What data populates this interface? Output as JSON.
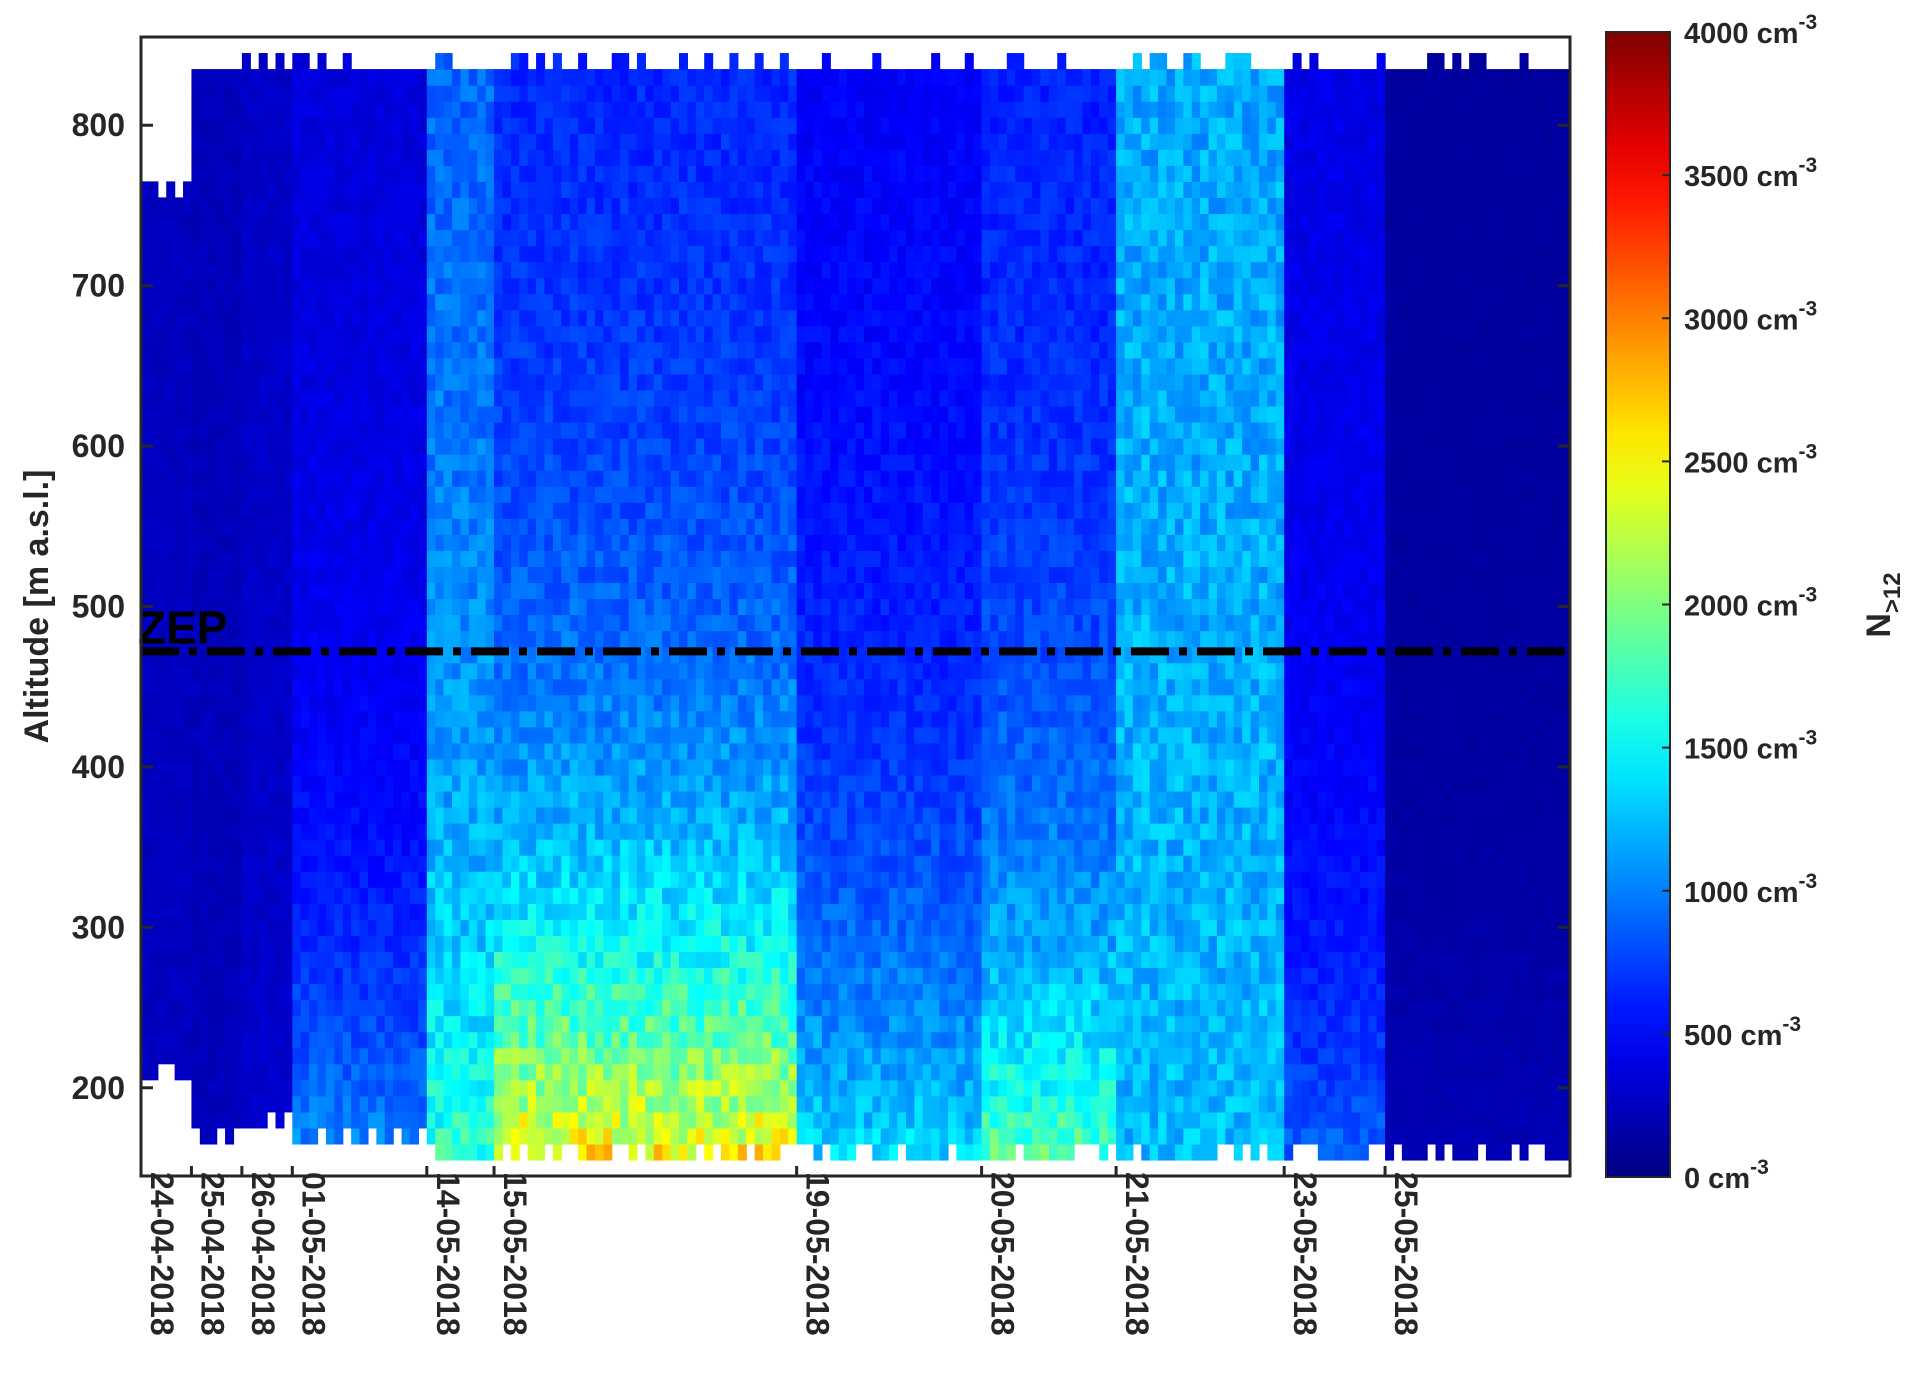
{
  "chart_data": {
    "type": "heatmap",
    "title": "",
    "xlabel": "",
    "ylabel": "Altitude [m a.s.l.]",
    "ylim": [
      145,
      855
    ],
    "y_ticks": [
      200,
      300,
      400,
      500,
      600,
      700,
      800
    ],
    "x_segments": [
      {
        "date": "24-04-2018",
        "columns": 6
      },
      {
        "date": "25-04-2018",
        "columns": 6
      },
      {
        "date": "26-04-2018",
        "columns": 6
      },
      {
        "date": "01-05-2018",
        "columns": 16
      },
      {
        "date": "14-05-2018",
        "columns": 8
      },
      {
        "date": "15-05-2018",
        "columns": 36
      },
      {
        "date": "19-05-2018",
        "columns": 22
      },
      {
        "date": "20-05-2018",
        "columns": 16
      },
      {
        "date": "21-05-2018",
        "columns": 20
      },
      {
        "date": "23-05-2018",
        "columns": 12
      },
      {
        "date": "25-05-2018",
        "columns": 22
      }
    ],
    "reference_line": {
      "label": "ZEP",
      "y": 472,
      "style": "dash-dot"
    },
    "colorbar": {
      "label": "N",
      "label_subscript": ">12",
      "range": [
        0,
        4000
      ],
      "colormap": "jet",
      "tick_values": [
        0,
        500,
        1000,
        1500,
        2000,
        2500,
        3000,
        3500,
        4000
      ],
      "tick_labels": [
        "0 cm",
        "500 cm",
        "1000 cm",
        "1500 cm",
        "2000 cm",
        "2500 cm",
        "3000 cm",
        "3500 cm",
        "4000 cm"
      ],
      "unit_superscript": "-3"
    },
    "profiles": [
      {
        "date": "24-04-2018",
        "ymin": 200,
        "ymax": 770,
        "base": 250,
        "surface": 250,
        "decay": 150
      },
      {
        "date": "25-04-2018",
        "ymin": 160,
        "ymax": 845,
        "base": 230,
        "surface": 230,
        "decay": 150
      },
      {
        "date": "26-04-2018",
        "ymin": 170,
        "ymax": 845,
        "base": 280,
        "surface": 300,
        "decay": 150
      },
      {
        "date": "01-05-2018",
        "ymin": 160,
        "ymax": 845,
        "base": 350,
        "surface": 1100,
        "decay": 160
      },
      {
        "date": "14-05-2018",
        "ymin": 150,
        "ymax": 845,
        "base": 850,
        "surface": 1700,
        "decay": 230
      },
      {
        "date": "15-05-2018",
        "ymin": 150,
        "ymax": 845,
        "base": 600,
        "surface": 2600,
        "decay": 180
      },
      {
        "date": "19-05-2018",
        "ymin": 150,
        "ymax": 845,
        "base": 450,
        "surface": 1400,
        "decay": 200
      },
      {
        "date": "20-05-2018",
        "ymin": 150,
        "ymax": 845,
        "base": 600,
        "surface": 1900,
        "decay": 170
      },
      {
        "date": "21-05-2018",
        "ymin": 150,
        "ymax": 845,
        "base": 1150,
        "surface": 1250,
        "decay": 300
      },
      {
        "date": "23-05-2018",
        "ymin": 150,
        "ymax": 845,
        "base": 400,
        "surface": 900,
        "decay": 150
      },
      {
        "date": "25-05-2018",
        "ymin": 150,
        "ymax": 845,
        "base": 120,
        "surface": 220,
        "decay": 150
      }
    ]
  }
}
